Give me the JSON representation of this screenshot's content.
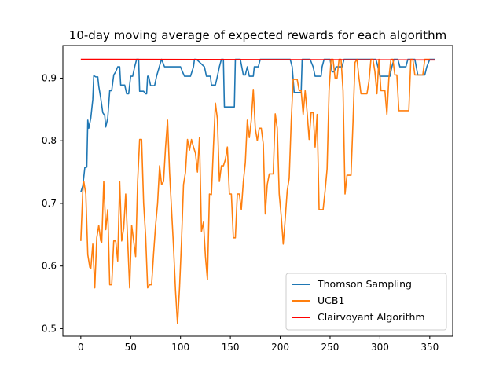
{
  "chart_data": {
    "type": "line",
    "title": "10-day moving average of expected rewards for each algorithm",
    "xlabel": "",
    "ylabel": "",
    "xlim": [
      -18,
      373
    ],
    "ylim": [
      0.488,
      0.952
    ],
    "x_ticks": [
      0,
      50,
      100,
      150,
      200,
      250,
      300,
      350
    ],
    "y_ticks": [
      0.5,
      0.6,
      0.7,
      0.8,
      0.9
    ],
    "x_tick_labels": [
      "0",
      "50",
      "100",
      "150",
      "200",
      "250",
      "300",
      "350"
    ],
    "y_tick_labels": [
      "0.5",
      "0.6",
      "0.7",
      "0.8",
      "0.9"
    ],
    "grid": false,
    "legend_position": "lower-right",
    "series": [
      {
        "name": "Thomson Sampling",
        "color": "#1f77b4",
        "points": [
          [
            0,
            0.718
          ],
          [
            2,
            0.728
          ],
          [
            4,
            0.757
          ],
          [
            6,
            0.758
          ],
          [
            7,
            0.833
          ],
          [
            8,
            0.82
          ],
          [
            10,
            0.836
          ],
          [
            12,
            0.866
          ],
          [
            13,
            0.904
          ],
          [
            15,
            0.902
          ],
          [
            17,
            0.902
          ],
          [
            18,
            0.887
          ],
          [
            20,
            0.868
          ],
          [
            22,
            0.845
          ],
          [
            24,
            0.84
          ],
          [
            25,
            0.822
          ],
          [
            27,
            0.836
          ],
          [
            29,
            0.88
          ],
          [
            31,
            0.88
          ],
          [
            33,
            0.905
          ],
          [
            35,
            0.91
          ],
          [
            37,
            0.918
          ],
          [
            39,
            0.918
          ],
          [
            40,
            0.889
          ],
          [
            44,
            0.889
          ],
          [
            46,
            0.875
          ],
          [
            48,
            0.875
          ],
          [
            50,
            0.903
          ],
          [
            52,
            0.903
          ],
          [
            54,
            0.918
          ],
          [
            56,
            0.93
          ],
          [
            58,
            0.93
          ],
          [
            59,
            0.879
          ],
          [
            61,
            0.879
          ],
          [
            63,
            0.879
          ],
          [
            65,
            0.875
          ],
          [
            66,
            0.875
          ],
          [
            67,
            0.903
          ],
          [
            68,
            0.903
          ],
          [
            70,
            0.888
          ],
          [
            74,
            0.888
          ],
          [
            76,
            0.903
          ],
          [
            80,
            0.925
          ],
          [
            81,
            0.93
          ],
          [
            84,
            0.918
          ],
          [
            90,
            0.918
          ],
          [
            100,
            0.918
          ],
          [
            102,
            0.91
          ],
          [
            104,
            0.903
          ],
          [
            110,
            0.903
          ],
          [
            113,
            0.918
          ],
          [
            114,
            0.93
          ],
          [
            116,
            0.93
          ],
          [
            124,
            0.918
          ],
          [
            126,
            0.903
          ],
          [
            130,
            0.903
          ],
          [
            131,
            0.889
          ],
          [
            135,
            0.889
          ],
          [
            137,
            0.903
          ],
          [
            139,
            0.918
          ],
          [
            141,
            0.93
          ],
          [
            143,
            0.93
          ],
          [
            144,
            0.854
          ],
          [
            154,
            0.854
          ],
          [
            155,
            0.93
          ],
          [
            160,
            0.93
          ],
          [
            163,
            0.905
          ],
          [
            165,
            0.905
          ],
          [
            167,
            0.918
          ],
          [
            169,
            0.903
          ],
          [
            173,
            0.903
          ],
          [
            174,
            0.918
          ],
          [
            178,
            0.918
          ],
          [
            180,
            0.93
          ],
          [
            210,
            0.93
          ],
          [
            212,
            0.918
          ],
          [
            214,
            0.877
          ],
          [
            221,
            0.877
          ],
          [
            222,
            0.93
          ],
          [
            230,
            0.93
          ],
          [
            233,
            0.918
          ],
          [
            235,
            0.903
          ],
          [
            241,
            0.903
          ],
          [
            242,
            0.918
          ],
          [
            244,
            0.93
          ],
          [
            250,
            0.93
          ],
          [
            252,
            0.91
          ],
          [
            254,
            0.91
          ],
          [
            256,
            0.918
          ],
          [
            262,
            0.918
          ],
          [
            264,
            0.93
          ],
          [
            296,
            0.93
          ],
          [
            298,
            0.918
          ],
          [
            300,
            0.903
          ],
          [
            310,
            0.903
          ],
          [
            312,
            0.918
          ],
          [
            314,
            0.93
          ],
          [
            318,
            0.93
          ],
          [
            320,
            0.918
          ],
          [
            326,
            0.918
          ],
          [
            328,
            0.93
          ],
          [
            335,
            0.93
          ],
          [
            338,
            0.905
          ],
          [
            345,
            0.905
          ],
          [
            347,
            0.918
          ],
          [
            350,
            0.93
          ],
          [
            355,
            0.93
          ]
        ]
      },
      {
        "name": "UCB1",
        "color": "#ff7f0e",
        "points": [
          [
            0,
            0.64
          ],
          [
            2,
            0.72
          ],
          [
            3,
            0.735
          ],
          [
            5,
            0.715
          ],
          [
            7,
            0.618
          ],
          [
            9,
            0.598
          ],
          [
            10,
            0.596
          ],
          [
            12,
            0.635
          ],
          [
            14,
            0.565
          ],
          [
            16,
            0.645
          ],
          [
            18,
            0.665
          ],
          [
            20,
            0.64
          ],
          [
            21,
            0.638
          ],
          [
            23,
            0.735
          ],
          [
            25,
            0.658
          ],
          [
            27,
            0.69
          ],
          [
            29,
            0.57
          ],
          [
            31,
            0.57
          ],
          [
            33,
            0.64
          ],
          [
            35,
            0.64
          ],
          [
            37,
            0.608
          ],
          [
            39,
            0.735
          ],
          [
            41,
            0.64
          ],
          [
            43,
            0.66
          ],
          [
            45,
            0.715
          ],
          [
            47,
            0.64
          ],
          [
            49,
            0.565
          ],
          [
            51,
            0.665
          ],
          [
            53,
            0.64
          ],
          [
            55,
            0.615
          ],
          [
            57,
            0.735
          ],
          [
            59,
            0.802
          ],
          [
            61,
            0.802
          ],
          [
            63,
            0.7
          ],
          [
            65,
            0.648
          ],
          [
            67,
            0.565
          ],
          [
            69,
            0.57
          ],
          [
            71,
            0.57
          ],
          [
            73,
            0.62
          ],
          [
            75,
            0.665
          ],
          [
            77,
            0.7
          ],
          [
            79,
            0.76
          ],
          [
            81,
            0.73
          ],
          [
            83,
            0.735
          ],
          [
            85,
            0.79
          ],
          [
            87,
            0.833
          ],
          [
            89,
            0.75
          ],
          [
            91,
            0.69
          ],
          [
            93,
            0.63
          ],
          [
            95,
            0.56
          ],
          [
            97,
            0.508
          ],
          [
            99,
            0.565
          ],
          [
            101,
            0.64
          ],
          [
            103,
            0.73
          ],
          [
            105,
            0.75
          ],
          [
            107,
            0.802
          ],
          [
            109,
            0.785
          ],
          [
            111,
            0.802
          ],
          [
            113,
            0.79
          ],
          [
            115,
            0.78
          ],
          [
            117,
            0.75
          ],
          [
            119,
            0.805
          ],
          [
            121,
            0.655
          ],
          [
            123,
            0.67
          ],
          [
            125,
            0.615
          ],
          [
            127,
            0.578
          ],
          [
            129,
            0.715
          ],
          [
            131,
            0.714
          ],
          [
            133,
            0.79
          ],
          [
            135,
            0.86
          ],
          [
            137,
            0.835
          ],
          [
            139,
            0.735
          ],
          [
            141,
            0.76
          ],
          [
            143,
            0.76
          ],
          [
            145,
            0.77
          ],
          [
            147,
            0.79
          ],
          [
            149,
            0.715
          ],
          [
            151,
            0.715
          ],
          [
            153,
            0.645
          ],
          [
            155,
            0.645
          ],
          [
            157,
            0.715
          ],
          [
            159,
            0.715
          ],
          [
            161,
            0.69
          ],
          [
            163,
            0.735
          ],
          [
            165,
            0.765
          ],
          [
            167,
            0.833
          ],
          [
            169,
            0.805
          ],
          [
            171,
            0.833
          ],
          [
            173,
            0.882
          ],
          [
            175,
            0.82
          ],
          [
            177,
            0.8
          ],
          [
            179,
            0.82
          ],
          [
            181,
            0.82
          ],
          [
            183,
            0.795
          ],
          [
            185,
            0.683
          ],
          [
            187,
            0.73
          ],
          [
            189,
            0.747
          ],
          [
            191,
            0.747
          ],
          [
            193,
            0.747
          ],
          [
            195,
            0.843
          ],
          [
            197,
            0.82
          ],
          [
            199,
            0.715
          ],
          [
            201,
            0.68
          ],
          [
            203,
            0.635
          ],
          [
            205,
            0.675
          ],
          [
            207,
            0.72
          ],
          [
            209,
            0.74
          ],
          [
            211,
            0.83
          ],
          [
            213,
            0.898
          ],
          [
            215,
            0.898
          ],
          [
            217,
            0.898
          ],
          [
            219,
            0.88
          ],
          [
            221,
            0.88
          ],
          [
            223,
            0.842
          ],
          [
            225,
            0.88
          ],
          [
            227,
            0.845
          ],
          [
            229,
            0.802
          ],
          [
            231,
            0.845
          ],
          [
            233,
            0.845
          ],
          [
            235,
            0.79
          ],
          [
            237,
            0.842
          ],
          [
            239,
            0.69
          ],
          [
            241,
            0.69
          ],
          [
            243,
            0.69
          ],
          [
            245,
            0.72
          ],
          [
            247,
            0.755
          ],
          [
            249,
            0.88
          ],
          [
            251,
            0.93
          ],
          [
            253,
            0.93
          ],
          [
            255,
            0.9
          ],
          [
            257,
            0.9
          ],
          [
            259,
            0.93
          ],
          [
            261,
            0.93
          ],
          [
            263,
            0.88
          ],
          [
            265,
            0.715
          ],
          [
            267,
            0.745
          ],
          [
            269,
            0.745
          ],
          [
            271,
            0.745
          ],
          [
            273,
            0.83
          ],
          [
            275,
            0.925
          ],
          [
            277,
            0.93
          ],
          [
            279,
            0.9
          ],
          [
            281,
            0.875
          ],
          [
            283,
            0.875
          ],
          [
            285,
            0.875
          ],
          [
            287,
            0.875
          ],
          [
            289,
            0.895
          ],
          [
            291,
            0.93
          ],
          [
            293,
            0.93
          ],
          [
            295,
            0.91
          ],
          [
            297,
            0.875
          ],
          [
            299,
            0.93
          ],
          [
            301,
            0.88
          ],
          [
            303,
            0.88
          ],
          [
            305,
            0.88
          ],
          [
            307,
            0.842
          ],
          [
            309,
            0.9
          ],
          [
            311,
            0.93
          ],
          [
            313,
            0.93
          ],
          [
            315,
            0.905
          ],
          [
            317,
            0.905
          ],
          [
            319,
            0.848
          ],
          [
            321,
            0.848
          ],
          [
            325,
            0.848
          ],
          [
            329,
            0.848
          ],
          [
            331,
            0.93
          ],
          [
            333,
            0.93
          ],
          [
            335,
            0.905
          ],
          [
            337,
            0.905
          ],
          [
            339,
            0.905
          ],
          [
            341,
            0.905
          ],
          [
            343,
            0.905
          ],
          [
            345,
            0.93
          ],
          [
            348,
            0.93
          ],
          [
            350,
            0.93
          ]
        ]
      },
      {
        "name": "Clairvoyant Algorithm",
        "color": "#ff0000",
        "points": [
          [
            0,
            0.93
          ],
          [
            355,
            0.929
          ]
        ]
      }
    ]
  }
}
